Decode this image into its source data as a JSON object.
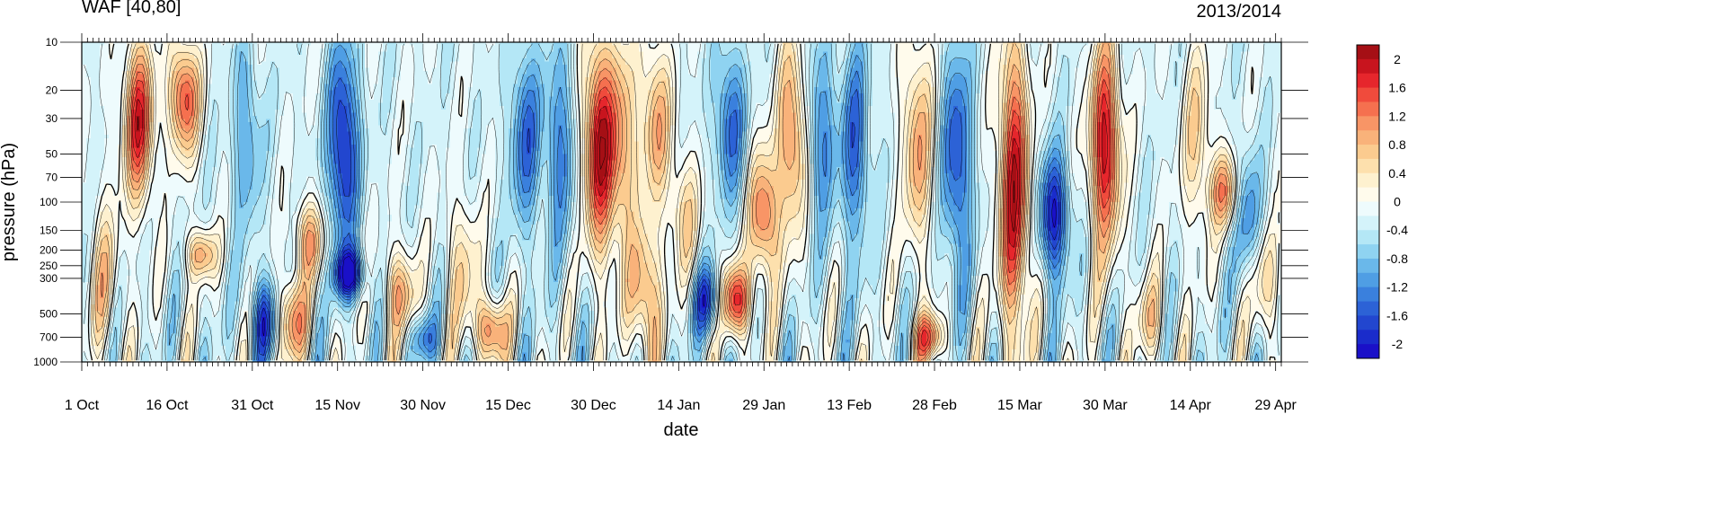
{
  "chart_data": {
    "type": "heatmap",
    "title": "WAF [40,80]",
    "subtitle": "2013/2014",
    "xlabel": "date",
    "ylabel": "pressure (hPa)",
    "x_tick_labels": [
      "1 Oct",
      "16 Oct",
      "31 Oct",
      "15 Nov",
      "30 Nov",
      "15 Dec",
      "30 Dec",
      "14 Jan",
      "29 Jan",
      "13 Feb",
      "28 Feb",
      "15 Mar",
      "30 Mar",
      "14 Apr",
      "29 Apr"
    ],
    "x_range": [
      "2013-10-01",
      "2014-04-30"
    ],
    "y_tick_labels": [
      "10",
      "20",
      "30",
      "50",
      "70",
      "100",
      "150",
      "200",
      "250",
      "300",
      "500",
      "700",
      "1000"
    ],
    "y_ticks": [
      10,
      20,
      30,
      50,
      70,
      100,
      150,
      200,
      250,
      300,
      500,
      700,
      1000
    ],
    "y_range": [
      1000,
      10
    ],
    "y_scale": "log",
    "grid": false,
    "colorbar": {
      "placement": "right",
      "tick_labels": [
        "2",
        "1.6",
        "1.2",
        "0.8",
        "0.4",
        "0",
        "-0.4",
        "-0.8",
        "-1.2",
        "-1.6",
        "-2"
      ],
      "levels": [
        2.2,
        2.0,
        1.8,
        1.6,
        1.4,
        1.2,
        1.0,
        0.8,
        0.6,
        0.4,
        0.2,
        0.0,
        -0.2,
        -0.4,
        -0.6,
        -0.8,
        -1.0,
        -1.2,
        -1.4,
        -1.6,
        -1.8,
        -2.0,
        -2.2
      ],
      "colors": [
        "#a50f15",
        "#c8141e",
        "#e6262c",
        "#f04b3c",
        "#f5704f",
        "#f89566",
        "#f9b27a",
        "#fbcb8f",
        "#fde0ad",
        "#fef1cf",
        "#fffbec",
        "#eefbfd",
        "#d4f3fa",
        "#b4e7f6",
        "#8fd3f1",
        "#6ab8ea",
        "#4f9ee4",
        "#3a80dd",
        "#2c62d6",
        "#2246cf",
        "#1a2ccb",
        "#1a10c8"
      ]
    },
    "features": [
      {
        "date": "2013-10-11",
        "p_top": 10,
        "p_bot": 100,
        "value": 2.0
      },
      {
        "date": "2013-10-19",
        "p_top": 10,
        "p_bot": 50,
        "value": 1.8
      },
      {
        "date": "2013-10-05",
        "p_top": 100,
        "p_bot": 1000,
        "value": 0.8
      },
      {
        "date": "2013-10-22",
        "p_top": 150,
        "p_bot": 300,
        "value": 1.2
      },
      {
        "date": "2013-10-30",
        "p_top": 10,
        "p_bot": 150,
        "value": -0.8
      },
      {
        "date": "2013-11-02",
        "p_top": 300,
        "p_bot": 1000,
        "value": -1.4
      },
      {
        "date": "2013-11-07",
        "p_top": 300,
        "p_bot": 1000,
        "value": 1.4
      },
      {
        "date": "2013-11-10",
        "p_top": 100,
        "p_bot": 300,
        "value": 1.2
      },
      {
        "date": "2013-11-16",
        "p_top": 10,
        "p_bot": 200,
        "value": -1.8
      },
      {
        "date": "2013-11-17",
        "p_top": 200,
        "p_bot": 400,
        "value": -2.0
      },
      {
        "date": "2013-11-26",
        "p_top": 200,
        "p_bot": 700,
        "value": 1.2
      },
      {
        "date": "2013-11-30",
        "p_top": 500,
        "p_bot": 1000,
        "value": -1.0
      },
      {
        "date": "2013-12-07",
        "p_top": 100,
        "p_bot": 700,
        "value": 0.8
      },
      {
        "date": "2013-12-12",
        "p_top": 400,
        "p_bot": 1000,
        "value": 1.6
      },
      {
        "date": "2013-12-18",
        "p_top": 10,
        "p_bot": 150,
        "value": -1.2
      },
      {
        "date": "2013-12-24",
        "p_top": 10,
        "p_bot": 200,
        "value": -1.0
      },
      {
        "date": "2013-12-31",
        "p_top": 10,
        "p_bot": 200,
        "value": 2.2
      },
      {
        "date": "2014-01-04",
        "p_top": 10,
        "p_bot": 200,
        "value": 1.2
      },
      {
        "date": "2014-01-08",
        "p_top": 150,
        "p_bot": 1000,
        "value": 1.4
      },
      {
        "date": "2014-01-10",
        "p_top": 10,
        "p_bot": 100,
        "value": 1.2
      },
      {
        "date": "2014-01-15",
        "p_top": 50,
        "p_bot": 300,
        "value": 0.8
      },
      {
        "date": "2014-01-19",
        "p_top": 250,
        "p_bot": 700,
        "value": -1.4
      },
      {
        "date": "2014-01-23",
        "p_top": 10,
        "p_bot": 100,
        "value": -1.2
      },
      {
        "date": "2014-01-24",
        "p_top": 250,
        "p_bot": 700,
        "value": 2.0
      },
      {
        "date": "2014-01-29",
        "p_top": 50,
        "p_bot": 300,
        "value": 1.6
      },
      {
        "date": "2014-02-03",
        "p_top": 10,
        "p_bot": 150,
        "value": 1.4
      },
      {
        "date": "2014-02-08",
        "p_top": 10,
        "p_bot": 150,
        "value": -1.0
      },
      {
        "date": "2014-02-14",
        "p_top": 10,
        "p_bot": 200,
        "value": -1.2
      },
      {
        "date": "2014-02-25",
        "p_top": 10,
        "p_bot": 200,
        "value": 1.2
      },
      {
        "date": "2014-02-27",
        "p_top": 500,
        "p_bot": 1000,
        "value": 1.6
      },
      {
        "date": "2014-03-04",
        "p_top": 10,
        "p_bot": 300,
        "value": -1.4
      },
      {
        "date": "2014-03-14",
        "p_top": 10,
        "p_bot": 700,
        "value": 2.2
      },
      {
        "date": "2014-03-21",
        "p_top": 50,
        "p_bot": 300,
        "value": -1.8
      },
      {
        "date": "2014-03-30",
        "p_top": 10,
        "p_bot": 200,
        "value": 2.2
      },
      {
        "date": "2014-04-07",
        "p_top": 300,
        "p_bot": 1000,
        "value": 0.8
      },
      {
        "date": "2014-04-15",
        "p_top": 10,
        "p_bot": 150,
        "value": 0.8
      },
      {
        "date": "2014-04-20",
        "p_top": 50,
        "p_bot": 150,
        "value": 1.4
      },
      {
        "date": "2014-04-24",
        "p_top": 50,
        "p_bot": 300,
        "value": -1.0
      },
      {
        "date": "2014-04-27",
        "p_top": 150,
        "p_bot": 700,
        "value": 0.8
      }
    ]
  }
}
